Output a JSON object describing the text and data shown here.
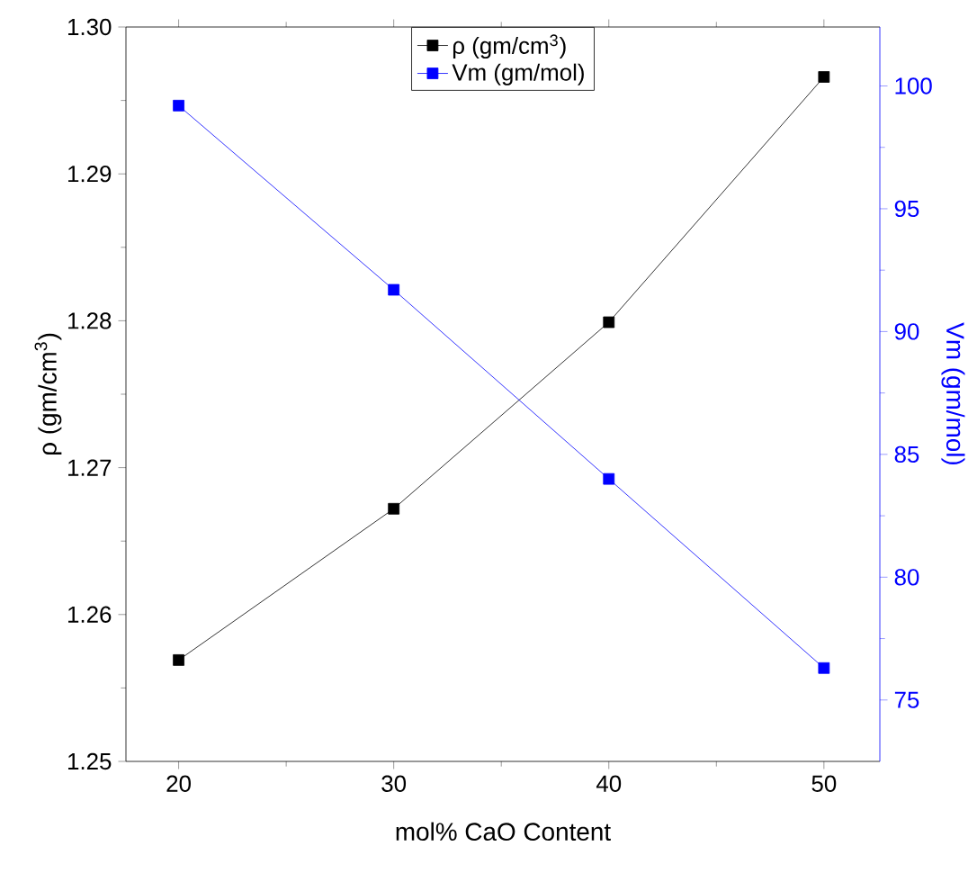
{
  "chart_data": {
    "type": "line",
    "x": [
      20,
      30,
      40,
      50
    ],
    "xlabel": "mol% CaO Content",
    "ylabel": "ρ (gm/cm$^{3}$)",
    "y2label": "Vm (gm/mol)",
    "series": [
      {
        "name": "ρ (gm/cm$^{3}$)",
        "color": "#000000",
        "values": [
          1.2569,
          1.2672,
          1.2799,
          1.2966
        ]
      },
      {
        "name": "Vm (gm/mol)",
        "color": "#0000ff",
        "axis": "y2",
        "values": [
          99.2,
          91.7,
          84.0,
          76.3
        ]
      }
    ],
    "xlim": [
      17.55,
      52.6
    ],
    "xticks": [
      20,
      30,
      40,
      50
    ],
    "ylim": [
      1.25,
      1.3
    ],
    "yticks": [
      {
        "value": 1.25,
        "label": "1.25"
      },
      {
        "value": 1.26,
        "label": "1.26"
      },
      {
        "value": 1.27,
        "label": "1.27"
      },
      {
        "value": 1.28,
        "label": "1.28"
      },
      {
        "value": 1.29,
        "label": "1.29"
      },
      {
        "value": 1.3,
        "label": "1.30"
      }
    ],
    "y2lim": [
      72.5,
      102.4
    ],
    "y2ticks": [
      75,
      80,
      85,
      90,
      95,
      100
    ],
    "marker": "square",
    "line_style": "solid",
    "grid": false,
    "legend": "top"
  }
}
